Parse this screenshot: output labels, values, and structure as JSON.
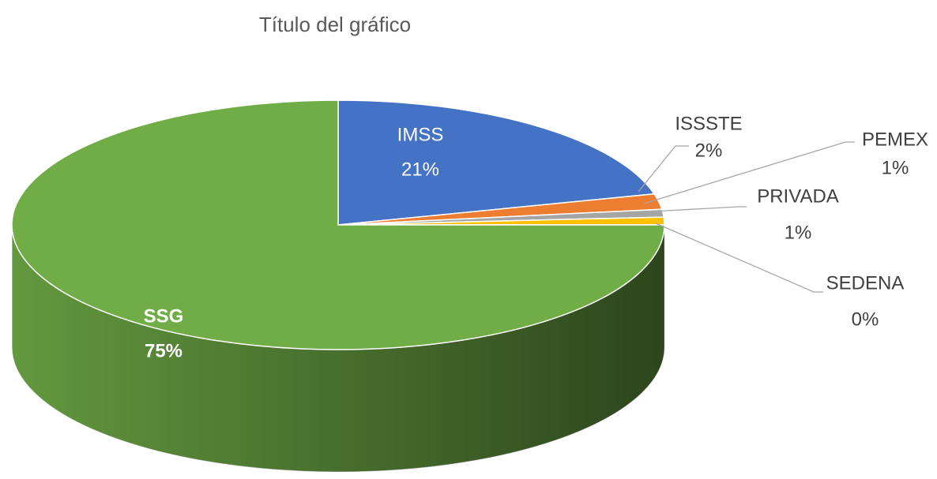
{
  "chart_data": {
    "type": "pie",
    "title": "Título del gráfico",
    "categories": [
      "IMSS",
      "ISSSTE",
      "PEMEX",
      "PRIVADA",
      "SEDENA",
      "SSG"
    ],
    "values": [
      21,
      2,
      1,
      1,
      0,
      75
    ],
    "value_labels": [
      "21%",
      "2%",
      "1%",
      "1%",
      "0%",
      "75%"
    ],
    "colors": [
      "#4472c4",
      "#ed7d31",
      "#a5a5a5",
      "#ffc000",
      "#5b9bd5",
      "#70ad47"
    ]
  }
}
